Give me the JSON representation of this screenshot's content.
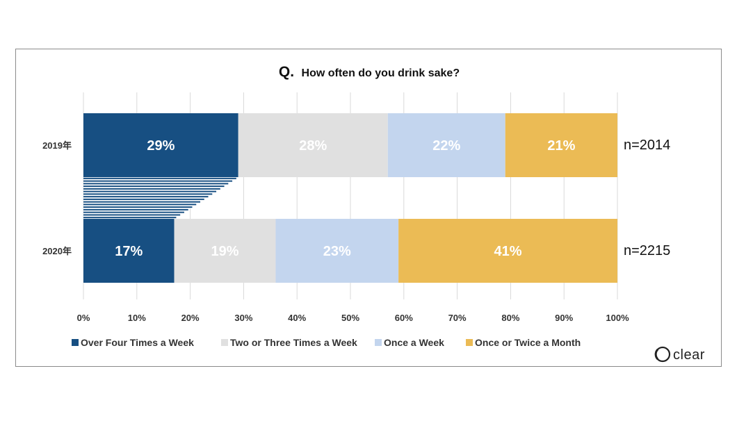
{
  "chart_data": {
    "type": "bar",
    "orientation": "horizontal",
    "stacked": true,
    "title_prefix": "Q.",
    "title": "How often do you drink sake?",
    "categories": [
      "2019年",
      "2020年"
    ],
    "sample_sizes": [
      "n=2014",
      "n=2215"
    ],
    "series": [
      {
        "name": "Over Four Times a Week",
        "values": [
          29,
          17
        ],
        "labels": [
          "29%",
          "17%"
        ],
        "color": "#174f82"
      },
      {
        "name": "Two or Three Times a Week",
        "values": [
          28,
          19
        ],
        "labels": [
          "28%",
          "19%"
        ],
        "color": "#e0e0e0"
      },
      {
        "name": "Once a Week",
        "values": [
          22,
          23
        ],
        "labels": [
          "22%",
          "23%"
        ],
        "color": "#c3d5ee"
      },
      {
        "name": "Once or Twice a Month",
        "values": [
          21,
          41
        ],
        "labels": [
          "21%",
          "41%"
        ],
        "color": "#ebbb55"
      }
    ],
    "xlim": [
      0,
      100
    ],
    "xticks": [
      "0%",
      "10%",
      "20%",
      "30%",
      "40%",
      "50%",
      "60%",
      "70%",
      "80%",
      "90%",
      "100%"
    ],
    "grid": true,
    "legend_position": "bottom"
  },
  "logo": {
    "text": "clear"
  }
}
